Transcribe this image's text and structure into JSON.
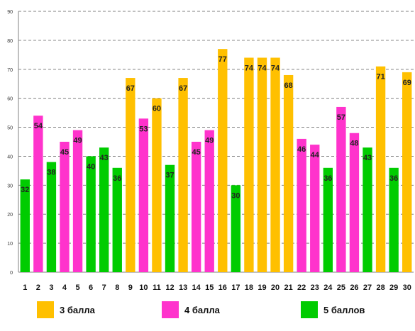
{
  "colors": {
    "3": "#FFC000",
    "4": "#FF33CC",
    "5": "#00CC00",
    "grid": "#808080",
    "axis": "#808080"
  },
  "legend": [
    {
      "key": "3",
      "label": "3 балла"
    },
    {
      "key": "4",
      "label": "4 балла"
    },
    {
      "key": "5",
      "label": "5 баллов"
    }
  ],
  "chart_data": {
    "type": "bar",
    "categories": [
      "1",
      "2",
      "3",
      "4",
      "5",
      "6",
      "7",
      "8",
      "9",
      "10",
      "11",
      "12",
      "13",
      "14",
      "15",
      "16",
      "17",
      "18",
      "19",
      "20",
      "21",
      "22",
      "23",
      "24",
      "25",
      "26",
      "27",
      "28",
      "29",
      "30"
    ],
    "values": [
      32,
      54,
      38,
      45,
      49,
      40,
      43,
      36,
      67,
      53,
      60,
      37,
      67,
      45,
      49,
      77,
      30,
      74,
      74,
      74,
      68,
      46,
      44,
      36,
      57,
      48,
      43,
      71,
      36,
      69
    ],
    "grades": [
      "5",
      "4",
      "5",
      "4",
      "4",
      "5",
      "5",
      "5",
      "3",
      "4",
      "3",
      "5",
      "3",
      "4",
      "4",
      "3",
      "5",
      "3",
      "3",
      "3",
      "3",
      "4",
      "4",
      "5",
      "4",
      "4",
      "5",
      "3",
      "5",
      "3"
    ],
    "series": [
      {
        "name": "3 балла",
        "key": "3"
      },
      {
        "name": "4 балла",
        "key": "4"
      },
      {
        "name": "5 баллов",
        "key": "5"
      }
    ],
    "ylim": [
      0,
      90
    ],
    "yticks": [
      0,
      10,
      20,
      30,
      40,
      50,
      60,
      70,
      80,
      90
    ],
    "grid": true,
    "legend_position": "bottom",
    "title": "",
    "xlabel": "",
    "ylabel": ""
  }
}
